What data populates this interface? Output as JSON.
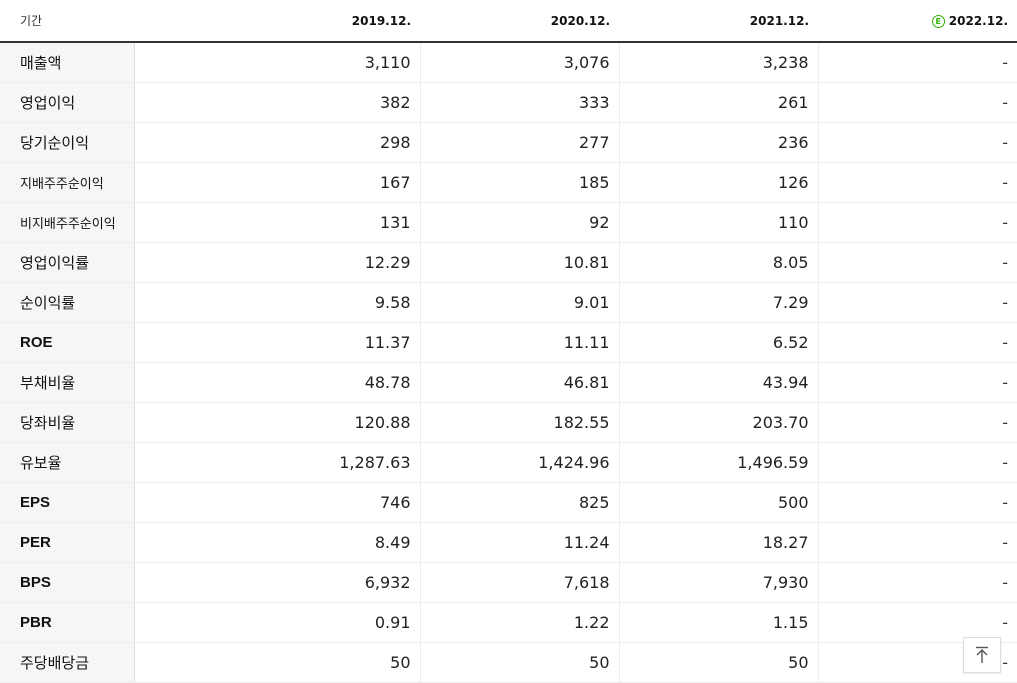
{
  "header": {
    "period_label": "기간",
    "periods": [
      "2019.12.",
      "2020.12.",
      "2021.12.",
      "2022.12."
    ],
    "estimate_marker": "E"
  },
  "rows": [
    {
      "label": "매출액",
      "values": [
        "3,110",
        "3,076",
        "3,238",
        "-"
      ]
    },
    {
      "label": "영업이익",
      "values": [
        "382",
        "333",
        "261",
        "-"
      ]
    },
    {
      "label": "당기순이익",
      "values": [
        "298",
        "277",
        "236",
        "-"
      ]
    },
    {
      "label": "지배주주순이익",
      "values": [
        "167",
        "185",
        "126",
        "-"
      ]
    },
    {
      "label": "비지배주주순이익",
      "values": [
        "131",
        "92",
        "110",
        "-"
      ]
    },
    {
      "label": "영업이익률",
      "values": [
        "12.29",
        "10.81",
        "8.05",
        "-"
      ]
    },
    {
      "label": "순이익률",
      "values": [
        "9.58",
        "9.01",
        "7.29",
        "-"
      ]
    },
    {
      "label": "ROE",
      "values": [
        "11.37",
        "11.11",
        "6.52",
        "-"
      ]
    },
    {
      "label": "부채비율",
      "values": [
        "48.78",
        "46.81",
        "43.94",
        "-"
      ]
    },
    {
      "label": "당좌비율",
      "values": [
        "120.88",
        "182.55",
        "203.70",
        "-"
      ]
    },
    {
      "label": "유보율",
      "values": [
        "1,287.63",
        "1,424.96",
        "1,496.59",
        "-"
      ]
    },
    {
      "label": "EPS",
      "values": [
        "746",
        "825",
        "500",
        "-"
      ]
    },
    {
      "label": "PER",
      "values": [
        "8.49",
        "11.24",
        "18.27",
        "-"
      ]
    },
    {
      "label": "BPS",
      "values": [
        "6,932",
        "7,618",
        "7,930",
        "-"
      ]
    },
    {
      "label": "PBR",
      "values": [
        "0.91",
        "1.22",
        "1.15",
        "-"
      ]
    },
    {
      "label": "주당배당금",
      "values": [
        "50",
        "50",
        "50",
        "-"
      ]
    }
  ],
  "top_button": {
    "icon": "arrow-up-to-top-icon"
  },
  "colors": {
    "estimate_icon": "#2db400",
    "header_border": "#333333",
    "label_bg": "#f6f6f6"
  }
}
